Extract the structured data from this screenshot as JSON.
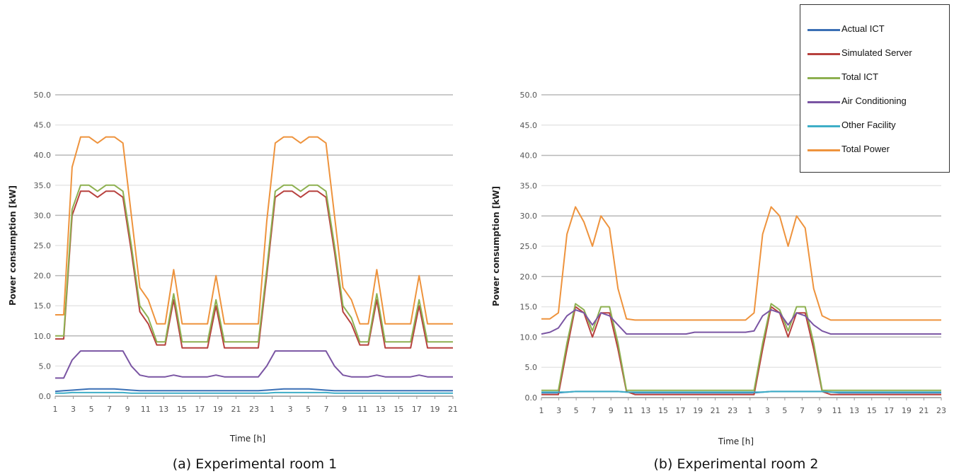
{
  "legend": [
    {
      "name": "Actual ICT",
      "color": "#3a6fb5"
    },
    {
      "name": "Simulated Server",
      "color": "#b7413e"
    },
    {
      "name": "Total ICT",
      "color": "#8db050"
    },
    {
      "name": "Air Conditioning",
      "color": "#7a55a3"
    },
    {
      "name": "Other Facility",
      "color": "#3eaec7"
    },
    {
      "name": "Total Power",
      "color": "#ee933d"
    }
  ],
  "chart_data": [
    {
      "type": "line",
      "caption": "(a) Experimental room 1",
      "ylabel": "Power consumption [kW]",
      "xlabel": "Time [h]",
      "ylim": [
        0,
        50
      ],
      "yticks": [
        "0.0",
        "5.0",
        "10.0",
        "15.0",
        "20.0",
        "25.0",
        "30.0",
        "35.0",
        "40.0",
        "45.0",
        "50.0"
      ],
      "xticks": [
        "1",
        "3",
        "5",
        "7",
        "9",
        "11",
        "13",
        "15",
        "17",
        "19",
        "21",
        "23",
        "1",
        "3",
        "5",
        "7",
        "9",
        "11",
        "13",
        "15",
        "17",
        "19",
        "21"
      ],
      "x": [
        0,
        1,
        2,
        3,
        4,
        5,
        6,
        7,
        8,
        9,
        10,
        11,
        12,
        13,
        14,
        15,
        16,
        17,
        18,
        19,
        20,
        21,
        22,
        23,
        24,
        25,
        26,
        27,
        28,
        29,
        30,
        31,
        32,
        33,
        34,
        35,
        36,
        37,
        38,
        39,
        40,
        41,
        42,
        43,
        44,
        45,
        46,
        47
      ],
      "series": [
        {
          "name": "Actual ICT",
          "values": [
            0.8,
            0.9,
            1.0,
            1.1,
            1.2,
            1.2,
            1.2,
            1.2,
            1.1,
            1.0,
            0.9,
            0.9,
            0.9,
            0.9,
            0.9,
            0.9,
            0.9,
            0.9,
            0.9,
            0.9,
            0.9,
            0.9,
            0.9,
            0.9,
            0.9,
            1.0,
            1.1,
            1.2,
            1.2,
            1.2,
            1.2,
            1.1,
            1.0,
            0.9,
            0.9,
            0.9,
            0.9,
            0.9,
            0.9,
            0.9,
            0.9,
            0.9,
            0.9,
            0.9,
            0.9,
            0.9,
            0.9,
            0.9
          ]
        },
        {
          "name": "Simulated Server",
          "values": [
            9.5,
            9.5,
            30,
            34,
            34,
            33,
            34,
            34,
            33,
            24,
            14,
            12,
            8.5,
            8.5,
            16,
            8,
            8,
            8,
            8,
            15,
            8,
            8,
            8,
            8,
            8,
            20,
            33,
            34,
            34,
            33,
            34,
            34,
            33,
            24,
            14,
            12,
            8.5,
            8.5,
            16,
            8,
            8,
            8,
            8,
            15,
            8,
            8,
            8,
            8
          ]
        },
        {
          "name": "Total ICT",
          "values": [
            10,
            10,
            31,
            35,
            35,
            34,
            35,
            35,
            34,
            25,
            15,
            13,
            9,
            9,
            17,
            9,
            9,
            9,
            9,
            16,
            9,
            9,
            9,
            9,
            9,
            21,
            34,
            35,
            35,
            34,
            35,
            35,
            34,
            25,
            15,
            13,
            9,
            9,
            17,
            9,
            9,
            9,
            9,
            16,
            9,
            9,
            9,
            9
          ]
        },
        {
          "name": "Air Conditioning",
          "values": [
            3,
            3,
            6,
            7.5,
            7.5,
            7.5,
            7.5,
            7.5,
            7.5,
            5,
            3.5,
            3.2,
            3.2,
            3.2,
            3.5,
            3.2,
            3.2,
            3.2,
            3.2,
            3.5,
            3.2,
            3.2,
            3.2,
            3.2,
            3.2,
            5,
            7.5,
            7.5,
            7.5,
            7.5,
            7.5,
            7.5,
            7.5,
            5,
            3.5,
            3.2,
            3.2,
            3.2,
            3.5,
            3.2,
            3.2,
            3.2,
            3.2,
            3.5,
            3.2,
            3.2,
            3.2,
            3.2
          ]
        },
        {
          "name": "Other Facility",
          "values": [
            0.5,
            0.5,
            0.6,
            0.6,
            0.6,
            0.6,
            0.6,
            0.6,
            0.6,
            0.5,
            0.5,
            0.5,
            0.5,
            0.5,
            0.5,
            0.5,
            0.5,
            0.5,
            0.5,
            0.5,
            0.5,
            0.5,
            0.5,
            0.5,
            0.5,
            0.5,
            0.6,
            0.6,
            0.6,
            0.6,
            0.6,
            0.6,
            0.6,
            0.5,
            0.5,
            0.5,
            0.5,
            0.5,
            0.5,
            0.5,
            0.5,
            0.5,
            0.5,
            0.5,
            0.5,
            0.5,
            0.5,
            0.5
          ]
        },
        {
          "name": "Total Power",
          "values": [
            13.5,
            13.5,
            38,
            43,
            43,
            42,
            43,
            43,
            42,
            30,
            18,
            16,
            12,
            12,
            21,
            12,
            12,
            12,
            12,
            20,
            12,
            12,
            12,
            12,
            12,
            29,
            42,
            43,
            43,
            42,
            43,
            43,
            42,
            30,
            18,
            16,
            12,
            12,
            21,
            12,
            12,
            12,
            12,
            20,
            12,
            12,
            12,
            12
          ]
        }
      ]
    },
    {
      "type": "line",
      "caption": "(b) Experimental room 2",
      "ylabel": "Power consumption [kW]",
      "xlabel": "Time [h]",
      "ylim": [
        0,
        50
      ],
      "yticks": [
        "0.0",
        "5.0",
        "10.0",
        "15.0",
        "20.0",
        "25.0",
        "30.0",
        "35.0",
        "40.0",
        "45.0",
        "50.0"
      ],
      "xticks": [
        "1",
        "3",
        "5",
        "7",
        "9",
        "11",
        "13",
        "15",
        "17",
        "19",
        "21",
        "23",
        "1",
        "3",
        "5",
        "7",
        "9",
        "11",
        "13",
        "15",
        "17",
        "19",
        "21",
        "23"
      ],
      "x": [
        0,
        1,
        2,
        3,
        4,
        5,
        6,
        7,
        8,
        9,
        10,
        11,
        12,
        13,
        14,
        15,
        16,
        17,
        18,
        19,
        20,
        21,
        22,
        23,
        24,
        25,
        26,
        27,
        28,
        29,
        30,
        31,
        32,
        33,
        34,
        35,
        36,
        37,
        38,
        39,
        40,
        41,
        42,
        43,
        44,
        45,
        46,
        47
      ],
      "series": [
        {
          "name": "Actual ICT",
          "values": [
            0.8,
            0.8,
            0.8,
            0.9,
            1.0,
            1.0,
            1.0,
            1.0,
            1.0,
            1.0,
            0.9,
            0.8,
            0.8,
            0.8,
            0.8,
            0.8,
            0.8,
            0.8,
            0.8,
            0.8,
            0.8,
            0.8,
            0.8,
            0.8,
            0.8,
            0.8,
            0.9,
            1.0,
            1.0,
            1.0,
            1.0,
            1.0,
            1.0,
            1.0,
            0.9,
            0.8,
            0.8,
            0.8,
            0.8,
            0.8,
            0.8,
            0.8,
            0.8,
            0.8,
            0.8,
            0.8,
            0.8,
            0.8
          ]
        },
        {
          "name": "Simulated Server",
          "values": [
            0.5,
            0.5,
            0.5,
            8,
            15,
            14,
            10,
            14,
            14,
            8,
            1,
            0.5,
            0.5,
            0.5,
            0.5,
            0.5,
            0.5,
            0.5,
            0.5,
            0.5,
            0.5,
            0.5,
            0.5,
            0.5,
            0.5,
            0.5,
            8,
            15,
            14,
            10,
            14,
            14,
            8,
            1,
            0.5,
            0.5,
            0.5,
            0.5,
            0.5,
            0.5,
            0.5,
            0.5,
            0.5,
            0.5,
            0.5,
            0.5,
            0.5,
            0.5
          ]
        },
        {
          "name": "Total ICT",
          "values": [
            1.2,
            1.2,
            1.2,
            9,
            15.5,
            14.5,
            11,
            15,
            15,
            9,
            1.2,
            1.2,
            1.2,
            1.2,
            1.2,
            1.2,
            1.2,
            1.2,
            1.2,
            1.2,
            1.2,
            1.2,
            1.2,
            1.2,
            1.2,
            1.2,
            9,
            15.5,
            14.5,
            11,
            15,
            15,
            9,
            1.2,
            1.2,
            1.2,
            1.2,
            1.2,
            1.2,
            1.2,
            1.2,
            1.2,
            1.2,
            1.2,
            1.2,
            1.2,
            1.2,
            1.2
          ]
        },
        {
          "name": "Air Conditioning",
          "values": [
            10.5,
            10.8,
            11.5,
            13.5,
            14.5,
            14,
            12,
            14,
            13.5,
            12,
            10.5,
            10.5,
            10.5,
            10.5,
            10.5,
            10.5,
            10.5,
            10.5,
            10.8,
            10.8,
            10.8,
            10.8,
            10.8,
            10.8,
            10.8,
            11,
            13.5,
            14.5,
            14,
            12,
            14,
            13.5,
            12,
            11,
            10.5,
            10.5,
            10.5,
            10.5,
            10.5,
            10.5,
            10.5,
            10.5,
            10.5,
            10.5,
            10.5,
            10.5,
            10.5,
            10.5
          ]
        },
        {
          "name": "Other Facility",
          "values": [
            0.9,
            0.9,
            0.9,
            0.9,
            1.0,
            1.0,
            1.0,
            1.0,
            1.0,
            1.0,
            0.9,
            0.9,
            0.9,
            0.9,
            0.9,
            0.9,
            0.9,
            0.9,
            0.9,
            0.9,
            0.9,
            0.9,
            0.9,
            0.9,
            0.9,
            0.9,
            0.9,
            1.0,
            1.0,
            1.0,
            1.0,
            1.0,
            1.0,
            1.0,
            0.9,
            0.9,
            0.9,
            0.9,
            0.9,
            0.9,
            0.9,
            0.9,
            0.9,
            0.9,
            0.9,
            0.9,
            0.9,
            0.9
          ]
        },
        {
          "name": "Total Power",
          "values": [
            13,
            13,
            14,
            27,
            31.5,
            29,
            25,
            30,
            28,
            18,
            13,
            12.8,
            12.8,
            12.8,
            12.8,
            12.8,
            12.8,
            12.8,
            12.8,
            12.8,
            12.8,
            12.8,
            12.8,
            12.8,
            12.8,
            14,
            27,
            31.5,
            30,
            25,
            30,
            28,
            18,
            13.5,
            12.8,
            12.8,
            12.8,
            12.8,
            12.8,
            12.8,
            12.8,
            12.8,
            12.8,
            12.8,
            12.8,
            12.8,
            12.8,
            12.8
          ]
        }
      ]
    }
  ]
}
